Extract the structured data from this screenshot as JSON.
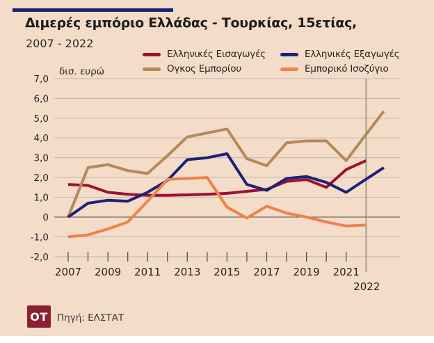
{
  "header": {
    "title": "Διμερές εμπόριο Ελλάδας - Τουρκίας, 15ετίας,",
    "subtitle": "2007 - 2022",
    "accent_bar_color": "#1b2472"
  },
  "footer": {
    "logo_text": "OT",
    "logo_bg": "#8b2034",
    "source": "Πηγή: ΕΛΣΤΑΤ"
  },
  "colors": {
    "background": "#f3dcc8",
    "bottom_strip": "#ffffff",
    "grid": "#c7bdb0",
    "zero_line": "#54504a",
    "marker_line": "#7b776f",
    "axis_text": "#242424"
  },
  "chart_data": {
    "type": "line",
    "title": "Διμερές εμπόριο Ελλάδας - Τουρκίας, 15ετίας, 2007 - 2022",
    "ylabel": "δισ. ευρώ",
    "xlabel": "",
    "unit": "δισ. ευρώ",
    "ylim": [
      -2,
      7
    ],
    "ytick_step": 1,
    "grid": true,
    "legend_position": "top",
    "x": [
      2007,
      2008,
      2009,
      2010,
      2011,
      2012,
      2013,
      2014,
      2015,
      2016,
      2017,
      2018,
      2019,
      2020,
      2021,
      2022
    ],
    "x_axis_labeled_years": [
      2007,
      2009,
      2011,
      2013,
      2015,
      2017,
      2019,
      2021
    ],
    "marker_year": 2022,
    "series": [
      {
        "key": "imports",
        "name": "Ελληνικές Εισαγωγές",
        "color": "#9e1133",
        "ends_at_marker": true,
        "values": [
          1.65,
          1.6,
          1.25,
          1.15,
          1.1,
          1.1,
          1.12,
          1.15,
          1.2,
          1.3,
          1.4,
          1.8,
          1.9,
          1.5,
          2.4,
          2.85
        ]
      },
      {
        "key": "exports",
        "name": "Ελληνικές Εξαγωγές",
        "color": "#1c2277",
        "ends_at_marker": false,
        "values": [
          0.0,
          0.7,
          0.85,
          0.8,
          1.25,
          1.85,
          2.9,
          3.0,
          3.2,
          1.65,
          1.35,
          1.95,
          2.05,
          1.75,
          1.25,
          2.5
        ]
      },
      {
        "key": "volume",
        "name": "Ογκος Εμπορίου",
        "color": "#b38a5a",
        "ends_at_marker": false,
        "values": [
          0.0,
          2.5,
          2.65,
          2.35,
          2.2,
          3.1,
          4.05,
          4.25,
          4.45,
          2.95,
          2.6,
          3.75,
          3.85,
          3.85,
          2.85,
          5.35
        ]
      },
      {
        "key": "balance",
        "name": "Εμπορικό Ισοζύγιο",
        "color": "#f0814b",
        "ends_at_marker": true,
        "values": [
          -1.0,
          -0.9,
          -0.6,
          -0.25,
          0.8,
          1.9,
          1.95,
          2.0,
          0.5,
          -0.05,
          0.55,
          0.2,
          0.0,
          -0.25,
          -0.45,
          -0.4
        ]
      }
    ]
  }
}
